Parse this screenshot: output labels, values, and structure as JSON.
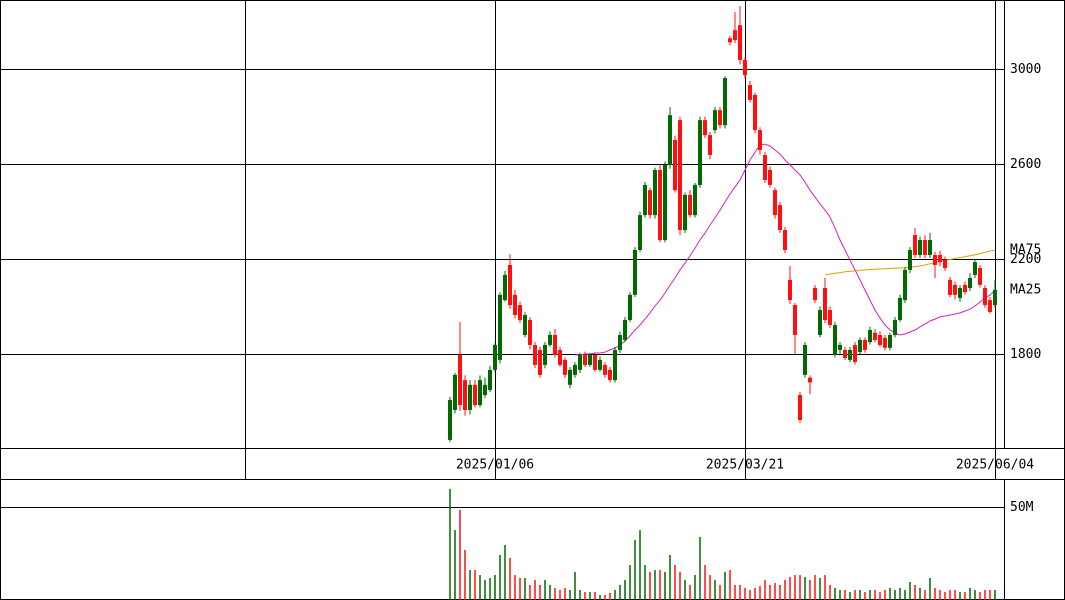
{
  "chart_data": [
    {
      "type": "candlestick",
      "categories": [
        null,
        null,
        null,
        null,
        null,
        null,
        null,
        null,
        null,
        "2025/01/06",
        null,
        null,
        null,
        null,
        null,
        null,
        null,
        null,
        null,
        null,
        null,
        null,
        null,
        null,
        null,
        null,
        null,
        null,
        null,
        null,
        null,
        null,
        null,
        null,
        null,
        null,
        null,
        null,
        null,
        null,
        null,
        null,
        null,
        null,
        null,
        null,
        null,
        null,
        null,
        null,
        null,
        null,
        null,
        null,
        null,
        null,
        null,
        null,
        null,
        "2025/03/21",
        null,
        null,
        null,
        null,
        null,
        null,
        null,
        null,
        null,
        null,
        null,
        null,
        null,
        null,
        null,
        null,
        null,
        null,
        null,
        null,
        null,
        null,
        null,
        null,
        null,
        null,
        null,
        null,
        null,
        null,
        null,
        null,
        null,
        null,
        null,
        null,
        null,
        null,
        null,
        null,
        null,
        null,
        null,
        null,
        null,
        null,
        null,
        null,
        null,
        "2025/06/04"
      ],
      "open": [
        1438,
        1564,
        1796,
        1690,
        1564,
        1670,
        1585,
        1627,
        1648,
        1733,
        1775,
        2027,
        2175,
        2049,
        2006,
        1880,
        1943,
        1838,
        1817,
        1754,
        1838,
        1880,
        1817,
        1775,
        1670,
        1712,
        1733,
        1796,
        1754,
        1796,
        1733,
        1754,
        1733,
        1690,
        1817,
        1859,
        1943,
        2049,
        2238,
        2385,
        2490,
        2385,
        2575,
        2280,
        2596,
        2701,
        2785,
        2322,
        2470,
        2385,
        2512,
        2785,
        2722,
        2743,
        2827,
        2764,
        3130,
        3164,
        3185,
        3038,
        2933,
        2891,
        2743,
        2638,
        2575,
        2490,
        2427,
        2322,
        2112,
        2006,
        1627,
        1712,
        1700,
        2078,
        1880,
        2078,
        1985,
        1796,
        1817,
        1817,
        1775,
        1838,
        1808,
        1859,
        1850,
        1889,
        1880,
        1868,
        1826,
        1880,
        1943,
        2027,
        2154,
        2301,
        2217,
        2280,
        2217,
        2217,
        2217,
        2196,
        2112,
        2091,
        2036,
        2091,
        2078,
        2133,
        2162,
        2078,
        2027,
        2006
      ],
      "high": [
        1620,
        1720,
        1935,
        1710,
        1690,
        1690,
        1710,
        1700,
        1750,
        1845,
        2060,
        2150,
        2220,
        2070,
        2020,
        1975,
        1955,
        1850,
        1830,
        1850,
        1895,
        1905,
        1830,
        1785,
        1745,
        1765,
        1805,
        1810,
        1805,
        1805,
        1790,
        1765,
        1745,
        1830,
        1895,
        1955,
        2060,
        2250,
        2400,
        2525,
        2500,
        2585,
        2600,
        2610,
        2840,
        2720,
        2800,
        2480,
        2490,
        2520,
        2800,
        2800,
        2735,
        2840,
        2840,
        2970,
        3140,
        3240,
        3265,
        3050,
        2950,
        2900,
        2755,
        2650,
        2590,
        2500,
        2440,
        2335,
        2170,
        2015,
        1640,
        1850,
        1710,
        2090,
        2000,
        2120,
        2000,
        1935,
        1850,
        1830,
        1830,
        1850,
        1870,
        1870,
        1915,
        1905,
        1895,
        1880,
        1890,
        1955,
        2050,
        2165,
        2250,
        2330,
        2295,
        2300,
        2310,
        2230,
        2235,
        2210,
        2125,
        2105,
        2090,
        2105,
        2140,
        2200,
        2175,
        2090,
        2040,
        2110
      ],
      "low": [
        1430,
        1550,
        1560,
        1540,
        1545,
        1575,
        1575,
        1615,
        1640,
        1725,
        1760,
        2020,
        1990,
        1950,
        1930,
        1870,
        1820,
        1740,
        1700,
        1740,
        1830,
        1785,
        1745,
        1700,
        1655,
        1700,
        1720,
        1745,
        1745,
        1725,
        1725,
        1700,
        1680,
        1680,
        1805,
        1850,
        1935,
        2040,
        2230,
        2375,
        2370,
        2370,
        2270,
        2270,
        2580,
        2480,
        2300,
        2310,
        2375,
        2375,
        2500,
        2710,
        2620,
        2730,
        2750,
        2750,
        3100,
        3110,
        3020,
        2960,
        2860,
        2730,
        2640,
        2520,
        2500,
        2370,
        2310,
        2225,
        2010,
        1800,
        1510,
        1700,
        1630,
        2015,
        1870,
        1930,
        1910,
        1785,
        1800,
        1775,
        1765,
        1755,
        1800,
        1805,
        1840,
        1850,
        1830,
        1815,
        1815,
        1870,
        1935,
        2015,
        2140,
        2205,
        2205,
        2205,
        2205,
        2120,
        2170,
        2150,
        2040,
        2030,
        2020,
        2050,
        2065,
        2120,
        2080,
        1995,
        1970,
        1995
      ],
      "close": [
        1606,
        1712,
        1585,
        1564,
        1670,
        1585,
        1690,
        1670,
        1733,
        1838,
        2049,
        2133,
        2006,
        1964,
        1943,
        1964,
        1838,
        1754,
        1712,
        1838,
        1880,
        1796,
        1754,
        1712,
        1733,
        1754,
        1796,
        1754,
        1796,
        1733,
        1775,
        1712,
        1690,
        1817,
        1880,
        1943,
        2049,
        2238,
        2385,
        2512,
        2385,
        2575,
        2280,
        2596,
        2806,
        2490,
        2322,
        2470,
        2385,
        2512,
        2785,
        2722,
        2638,
        2827,
        2764,
        2962,
        3113,
        3122,
        3038,
        2975,
        2870,
        2743,
        2659,
        2533,
        2512,
        2385,
        2322,
        2238,
        2027,
        1880,
        1522,
        1838,
        1680,
        2027,
        1985,
        1943,
        1922,
        1922,
        1838,
        1783,
        1817,
        1766,
        1859,
        1817,
        1901,
        1859,
        1838,
        1826,
        1880,
        1943,
        2036,
        2154,
        2238,
        2217,
        2280,
        2217,
        2280,
        2175,
        2187,
        2162,
        2049,
        2049,
        2078,
        2061,
        2120,
        2187,
        2091,
        2006,
        1977,
        2070
      ],
      "up_color": "#006a00",
      "down_color": "#ff1010",
      "series": [
        {
          "name": "MA75",
          "color": "#e0a000",
          "values": [
            null,
            null,
            null,
            null,
            null,
            null,
            null,
            null,
            null,
            null,
            null,
            null,
            null,
            null,
            null,
            null,
            null,
            null,
            null,
            null,
            null,
            null,
            null,
            null,
            null,
            null,
            null,
            null,
            null,
            null,
            null,
            null,
            null,
            null,
            null,
            null,
            null,
            null,
            null,
            null,
            null,
            null,
            null,
            null,
            null,
            null,
            null,
            null,
            null,
            null,
            null,
            null,
            null,
            null,
            null,
            null,
            null,
            null,
            null,
            null,
            null,
            null,
            null,
            null,
            null,
            null,
            null,
            null,
            null,
            null,
            null,
            null,
            null,
            null,
            null,
            2133,
            2137,
            2140,
            2143,
            2146,
            2148,
            2150,
            2152,
            2154,
            2156,
            2157,
            2158,
            2159,
            2160,
            2161,
            2162,
            2163,
            2165,
            2168,
            2171,
            2175,
            2180,
            2185,
            2190,
            2194,
            2198,
            2202,
            2206,
            2210,
            2214,
            2218,
            2223,
            2228,
            2233,
            2238
          ]
        },
        {
          "name": "MA25",
          "color": "#e020c0",
          "values": [
            null,
            null,
            null,
            null,
            null,
            null,
            null,
            null,
            null,
            null,
            null,
            null,
            null,
            null,
            null,
            null,
            null,
            null,
            null,
            null,
            null,
            null,
            null,
            null,
            null,
            1796,
            1796,
            1800,
            1800,
            1804,
            1804,
            1808,
            1817,
            1825,
            1838,
            1855,
            1876,
            1901,
            1922,
            1947,
            1973,
            2002,
            2027,
            2057,
            2090,
            2120,
            2154,
            2183,
            2213,
            2246,
            2280,
            2309,
            2343,
            2373,
            2406,
            2440,
            2474,
            2503,
            2533,
            2575,
            2617,
            2650,
            2680,
            2684,
            2676,
            2659,
            2642,
            2617,
            2596,
            2575,
            2554,
            2524,
            2490,
            2461,
            2432,
            2406,
            2377,
            2331,
            2280,
            2238,
            2196,
            2154,
            2112,
            2069,
            2027,
            1985,
            1951,
            1922,
            1901,
            1888,
            1880,
            1884,
            1893,
            1901,
            1914,
            1926,
            1939,
            1947,
            1956,
            1960,
            1964,
            1968,
            1973,
            1981,
            1989,
            2002,
            2019,
            2036,
            2048,
            2069
          ]
        }
      ],
      "ylim": [
        1404,
        3291
      ],
      "yticks": [
        1800,
        2200,
        2600,
        3000
      ],
      "grid": true
    },
    {
      "type": "bar",
      "values": [
        59.7,
        37.6,
        48.4,
        26.9,
        16.1,
        16.1,
        13.4,
        10.8,
        11.8,
        13.4,
        24.2,
        29.6,
        22.6,
        13.4,
        11.8,
        11.8,
        8.1,
        10.8,
        8.1,
        10.8,
        8.1,
        6.5,
        5.4,
        6.5,
        5.4,
        15.1,
        5.4,
        4.3,
        4.3,
        4.3,
        2.7,
        2.7,
        3.8,
        5.4,
        8.1,
        10.8,
        18.8,
        32.3,
        37.6,
        18.8,
        15.1,
        16.1,
        16.1,
        15.1,
        24.2,
        18.8,
        15.1,
        10.8,
        8.1,
        13.4,
        33.9,
        18.8,
        13.4,
        10.8,
        8.1,
        15.1,
        16.1,
        8.1,
        8.1,
        6.5,
        5.4,
        6.5,
        7.5,
        10.8,
        8.1,
        9.1,
        8.1,
        10.8,
        12.4,
        13.4,
        13.4,
        12.4,
        10.8,
        13.4,
        11.8,
        13.4,
        8.1,
        6.5,
        5.4,
        5.4,
        4.3,
        5.4,
        5.4,
        4.3,
        5.4,
        5.4,
        4.3,
        5.4,
        6.5,
        5.4,
        6.5,
        5.4,
        9.7,
        8.1,
        6.5,
        5.4,
        11.8,
        6.5,
        5.4,
        4.3,
        5.4,
        5.4,
        4.3,
        4.3,
        6.5,
        5.4,
        4.3,
        5.4,
        5.4,
        5.4
      ],
      "ylim": [
        0,
        64.5
      ],
      "yticks": [
        {
          "value": 50,
          "label": "50M"
        }
      ],
      "grid": true
    }
  ]
}
